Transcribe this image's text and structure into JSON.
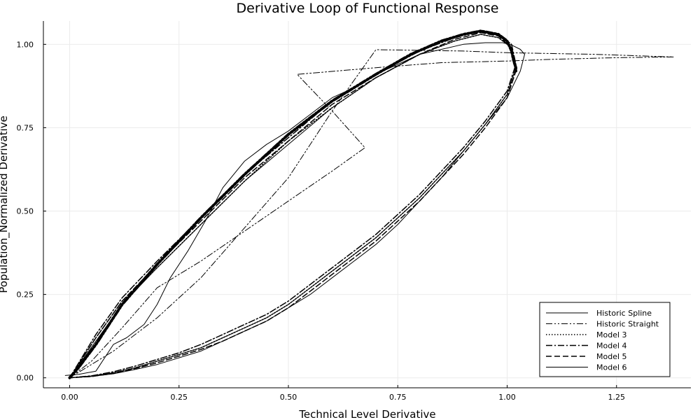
{
  "chart_data": {
    "type": "line",
    "title": "Derivative Loop of Functional Response",
    "xlabel": "Technical Level Derivative",
    "ylabel": "Population_Normalized Derivative",
    "xlim": [
      -0.06,
      1.42
    ],
    "ylim": [
      -0.03,
      1.07
    ],
    "xticks": [
      0.0,
      0.25,
      0.5,
      0.75,
      1.0,
      1.25
    ],
    "xtick_labels": [
      "0.00",
      "0.25",
      "0.50",
      "0.75",
      "1.00",
      "1.25"
    ],
    "yticks": [
      0.0,
      0.25,
      0.5,
      0.75,
      1.0
    ],
    "ytick_labels": [
      "0.00",
      "0.25",
      "0.50",
      "0.75",
      "1.00"
    ],
    "grid": true,
    "legend_position": "bottom-right",
    "series": [
      {
        "name": "Historic Spline",
        "style": "solid",
        "width": 1,
        "x": [
          -0.01,
          0.02,
          0.06,
          0.1,
          0.13,
          0.17,
          0.2,
          0.23,
          0.27,
          0.31,
          0.35,
          0.4,
          0.45,
          0.5,
          0.55,
          0.6,
          0.65,
          0.7,
          0.75,
          0.8,
          0.85,
          0.9,
          0.95,
          0.99,
          1.01,
          1.03,
          1.04,
          1.03,
          1.0,
          0.95,
          0.9,
          0.85,
          0.8,
          0.75,
          0.7,
          0.65,
          0.6,
          0.55,
          0.5,
          0.45,
          0.4,
          0.35,
          0.3,
          0.25,
          0.2,
          0.15,
          0.1,
          0.05,
          0.0
        ],
        "y": [
          0.007,
          0.01,
          0.02,
          0.1,
          0.12,
          0.16,
          0.22,
          0.3,
          0.38,
          0.47,
          0.57,
          0.65,
          0.7,
          0.74,
          0.79,
          0.84,
          0.87,
          0.91,
          0.94,
          0.97,
          0.985,
          1.0,
          1.005,
          1.005,
          0.998,
          0.985,
          0.97,
          0.92,
          0.84,
          0.76,
          0.68,
          0.6,
          0.53,
          0.46,
          0.4,
          0.35,
          0.3,
          0.25,
          0.21,
          0.17,
          0.14,
          0.11,
          0.08,
          0.06,
          0.04,
          0.025,
          0.012,
          0.004,
          0.0
        ]
      },
      {
        "name": "Historic Straight",
        "style": "dashdotdot",
        "width": 1,
        "x": [
          0.0,
          0.05,
          0.12,
          0.2,
          0.3,
          0.4,
          0.5,
          0.6,
          0.675,
          0.6,
          0.52,
          0.7,
          0.85,
          1.0,
          1.1,
          1.25,
          1.38,
          1.2,
          1.0,
          0.9,
          0.8,
          0.7,
          0.6,
          0.5,
          0.4,
          0.3,
          0.2,
          0.1,
          0.0
        ],
        "y": [
          0.0,
          0.05,
          0.15,
          0.27,
          0.35,
          0.44,
          0.53,
          0.62,
          0.69,
          0.8,
          0.91,
          0.93,
          0.945,
          0.95,
          0.955,
          0.96,
          0.962,
          0.97,
          0.975,
          0.98,
          0.982,
          0.984,
          0.8,
          0.6,
          0.45,
          0.3,
          0.18,
          0.08,
          0.0
        ]
      },
      {
        "name": "Model 3",
        "style": "dotted",
        "width": 1.5,
        "x": [
          0.0,
          0.06,
          0.12,
          0.2,
          0.3,
          0.4,
          0.5,
          0.6,
          0.7,
          0.8,
          0.88,
          0.94,
          0.98,
          1.01,
          1.02,
          1.0,
          0.95,
          0.9,
          0.85,
          0.8,
          0.75,
          0.7,
          0.65,
          0.6,
          0.55,
          0.5,
          0.45,
          0.4,
          0.35,
          0.3,
          0.25,
          0.2,
          0.15,
          0.1,
          0.05,
          0.0
        ],
        "y": [
          0.0,
          0.12,
          0.23,
          0.33,
          0.46,
          0.59,
          0.71,
          0.81,
          0.9,
          0.97,
          1.01,
          1.03,
          1.02,
          0.99,
          0.93,
          0.85,
          0.76,
          0.68,
          0.61,
          0.54,
          0.48,
          0.42,
          0.37,
          0.32,
          0.27,
          0.22,
          0.18,
          0.15,
          0.12,
          0.09,
          0.07,
          0.05,
          0.03,
          0.015,
          0.005,
          0.0
        ]
      },
      {
        "name": "Model 4",
        "style": "dashdot",
        "width": 1.5,
        "x": [
          0.0,
          0.06,
          0.12,
          0.2,
          0.3,
          0.4,
          0.5,
          0.6,
          0.7,
          0.8,
          0.88,
          0.94,
          0.98,
          1.01,
          1.02,
          1.0,
          0.95,
          0.9,
          0.85,
          0.8,
          0.75,
          0.7,
          0.65,
          0.6,
          0.55,
          0.5,
          0.45,
          0.4,
          0.35,
          0.3,
          0.25,
          0.2,
          0.15,
          0.1,
          0.05,
          0.0
        ],
        "y": [
          0.0,
          0.13,
          0.24,
          0.35,
          0.48,
          0.61,
          0.72,
          0.83,
          0.91,
          0.98,
          1.02,
          1.04,
          1.03,
          1.0,
          0.94,
          0.86,
          0.77,
          0.69,
          0.62,
          0.55,
          0.49,
          0.43,
          0.38,
          0.33,
          0.28,
          0.23,
          0.19,
          0.16,
          0.13,
          0.1,
          0.075,
          0.055,
          0.035,
          0.018,
          0.006,
          0.0
        ]
      },
      {
        "name": "Model 5",
        "style": "dashed",
        "width": 1.5,
        "x": [
          0.0,
          0.06,
          0.12,
          0.2,
          0.3,
          0.4,
          0.5,
          0.6,
          0.7,
          0.8,
          0.88,
          0.94,
          0.98,
          1.01,
          1.02,
          1.0,
          0.95,
          0.9,
          0.85,
          0.8,
          0.75,
          0.7,
          0.65,
          0.6,
          0.55,
          0.5,
          0.45,
          0.4,
          0.35,
          0.3,
          0.25,
          0.2,
          0.15,
          0.1,
          0.05,
          0.0
        ],
        "y": [
          0.0,
          0.12,
          0.23,
          0.34,
          0.47,
          0.6,
          0.71,
          0.82,
          0.9,
          0.97,
          1.015,
          1.035,
          1.025,
          0.99,
          0.92,
          0.84,
          0.75,
          0.67,
          0.6,
          0.53,
          0.47,
          0.41,
          0.36,
          0.31,
          0.26,
          0.21,
          0.17,
          0.14,
          0.11,
          0.085,
          0.065,
          0.045,
          0.028,
          0.013,
          0.004,
          0.0
        ]
      },
      {
        "name": "Model 6",
        "style": "solid",
        "width": 1,
        "x": [
          0.0,
          0.06,
          0.12,
          0.2,
          0.3,
          0.4,
          0.5,
          0.6,
          0.7,
          0.8,
          0.88,
          0.94,
          0.98,
          1.01,
          1.02,
          1.0,
          0.95,
          0.9,
          0.85,
          0.8,
          0.75,
          0.7,
          0.65,
          0.6,
          0.55,
          0.5,
          0.45,
          0.4,
          0.35,
          0.3,
          0.25,
          0.2,
          0.15,
          0.1,
          0.05,
          0.0
        ],
        "y": [
          0.0,
          0.11,
          0.22,
          0.33,
          0.46,
          0.59,
          0.7,
          0.81,
          0.9,
          0.97,
          1.01,
          1.03,
          1.02,
          0.99,
          0.93,
          0.85,
          0.76,
          0.68,
          0.61,
          0.54,
          0.48,
          0.42,
          0.37,
          0.32,
          0.27,
          0.22,
          0.18,
          0.15,
          0.12,
          0.09,
          0.07,
          0.05,
          0.03,
          0.015,
          0.005,
          0.0
        ]
      },
      {
        "name": "",
        "style": "dashdotdot",
        "width": 4,
        "x": [
          0.0,
          0.02,
          0.06,
          0.12,
          0.2,
          0.3,
          0.4,
          0.5,
          0.6,
          0.7,
          0.78,
          0.85,
          0.9,
          0.94,
          0.98,
          1.0,
          1.01,
          1.015,
          1.02,
          1.02
        ],
        "y": [
          0.0,
          0.03,
          0.1,
          0.22,
          0.34,
          0.48,
          0.61,
          0.73,
          0.83,
          0.91,
          0.97,
          1.01,
          1.03,
          1.04,
          1.03,
          1.01,
          0.98,
          0.95,
          0.93,
          0.92
        ]
      }
    ]
  }
}
